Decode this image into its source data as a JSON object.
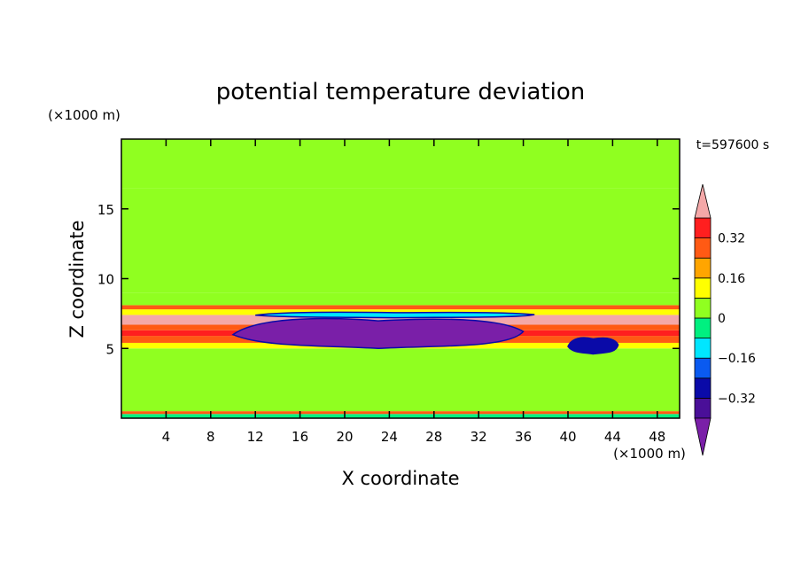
{
  "chart_data": {
    "type": "heatmap",
    "title": "potential temperature deviation",
    "time_label": "t=597600 s",
    "xlabel": "X coordinate",
    "ylabel": "Z coordinate",
    "x_unit": "(×1000 m)",
    "y_unit": "(×1000 m)",
    "xlim": [
      0,
      50
    ],
    "ylim": [
      0,
      20
    ],
    "x_ticks": [
      4,
      8,
      12,
      16,
      20,
      24,
      28,
      32,
      36,
      40,
      44,
      48
    ],
    "y_ticks": [
      5,
      10,
      15
    ],
    "colorbar": {
      "levels": [
        -0.4,
        -0.32,
        -0.24,
        -0.16,
        -0.08,
        0,
        0.08,
        0.16,
        0.24,
        0.32,
        0.4
      ],
      "tick_labels": [
        "0.32",
        "0.16",
        "0",
        "−0.16",
        "−0.32"
      ],
      "tick_values": [
        0.32,
        0.16,
        0,
        -0.16,
        -0.32
      ],
      "colors": [
        "#7a1fa8",
        "#4a0f98",
        "#0a0aa8",
        "#0a5af0",
        "#00e6ff",
        "#00f080",
        "#90ff20",
        "#ffff00",
        "#ffa500",
        "#ff5a14",
        "#ff1f1f",
        "#f4a8a8"
      ],
      "extend": "both"
    },
    "bands": [
      {
        "z": [
          0,
          0.3
        ],
        "value": -0.05
      },
      {
        "z": [
          0.3,
          0.5
        ],
        "value": 0.25
      },
      {
        "z": [
          0.5,
          5.0
        ],
        "value": 0.02
      },
      {
        "z": [
          5.0,
          5.4
        ],
        "value": 0.15
      },
      {
        "z": [
          5.4,
          5.9
        ],
        "value": 0.3
      },
      {
        "z": [
          5.9,
          6.3
        ],
        "value": 0.38
      },
      {
        "z": [
          6.3,
          6.7
        ],
        "value": 0.3
      },
      {
        "z": [
          6.7,
          7.4
        ],
        "value": 0.45
      },
      {
        "z": [
          7.4,
          7.8
        ],
        "value": 0.12
      },
      {
        "z": [
          7.8,
          8.1
        ],
        "value": 0.25
      },
      {
        "z": [
          8.1,
          9.0
        ],
        "value": 0.05
      },
      {
        "z": [
          9.0,
          14.0
        ],
        "value": 0.03
      },
      {
        "z": [
          14.0,
          16.5
        ],
        "value": 0.04
      },
      {
        "z": [
          16.5,
          20.0
        ],
        "value": 0.06
      }
    ],
    "anomalies": [
      {
        "x": [
          10,
          36
        ],
        "z": [
          5.0,
          7.2
        ],
        "value": -0.42
      },
      {
        "x": [
          12,
          37
        ],
        "z": [
          7.2,
          7.6
        ],
        "value": -0.1
      },
      {
        "x": [
          40,
          44.5
        ],
        "z": [
          4.6,
          5.8
        ],
        "value": -0.3
      }
    ]
  }
}
